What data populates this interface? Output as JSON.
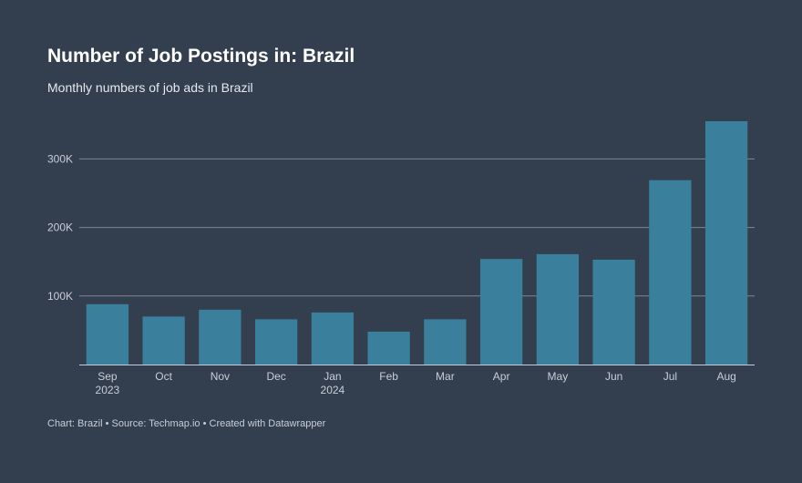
{
  "title": "Number of Job Postings in: Brazil",
  "subtitle": "Monthly numbers of job ads in Brazil",
  "footer": {
    "chart_label": "Chart: Brazil",
    "source": "Source: Techmap.io",
    "credit": "Created with Datawrapper",
    "separator": " • "
  },
  "colors": {
    "background": "#333e4f",
    "bar": "#3a7f9b",
    "gridline": "#7d8794"
  },
  "chart_data": {
    "type": "bar",
    "title": "Number of Job Postings in: Brazil",
    "subtitle": "Monthly numbers of job ads in Brazil",
    "categories": [
      [
        "Sep",
        "2023"
      ],
      [
        "Oct"
      ],
      [
        "Nov"
      ],
      [
        "Dec"
      ],
      [
        "Jan",
        "2024"
      ],
      [
        "Feb"
      ],
      [
        "Mar"
      ],
      [
        "Apr"
      ],
      [
        "May"
      ],
      [
        "Jun"
      ],
      [
        "Jul"
      ],
      [
        "Aug"
      ]
    ],
    "values": [
      88000,
      70000,
      80000,
      66000,
      76000,
      48000,
      66000,
      154000,
      161000,
      153000,
      269000,
      355000
    ],
    "ylim": [
      0,
      355000
    ],
    "yticks": [
      {
        "value": 100000,
        "label": "100K"
      },
      {
        "value": 200000,
        "label": "200K"
      },
      {
        "value": 300000,
        "label": "300K"
      }
    ],
    "xlabel": "",
    "ylabel": "",
    "grid": true
  }
}
